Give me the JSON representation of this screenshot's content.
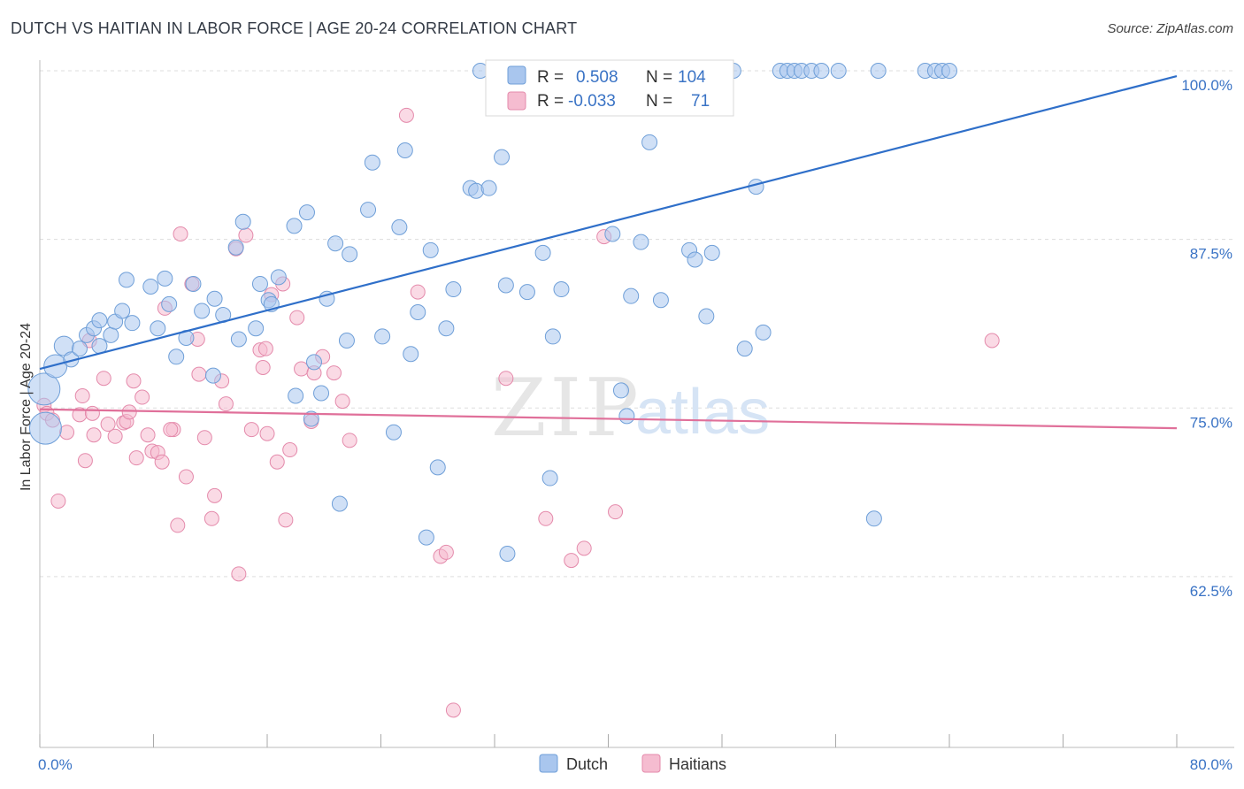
{
  "title": "DUTCH VS HAITIAN IN LABOR FORCE | AGE 20-24 CORRELATION CHART",
  "source": "Source: ZipAtlas.com",
  "watermark": {
    "zip": "ZIP",
    "atlas": "atlas"
  },
  "legend_box": {
    "rows": [
      {
        "r_label": "R =",
        "r_value": "0.508",
        "n_label": "N =",
        "n_value": "104"
      },
      {
        "r_label": "R =",
        "r_value": "-0.033",
        "n_label": "N =",
        "n_value": "71"
      }
    ]
  },
  "bottom_legend": [
    "Dutch",
    "Haitians"
  ],
  "colors": {
    "dutch_fill": "#a9c6ee",
    "dutch_stroke": "#6f9fd8",
    "dutch_line": "#2f6fc9",
    "haitian_fill": "#f5bcd0",
    "haitian_stroke": "#e48aab",
    "haitian_line": "#e0709a",
    "value_text": "#3a73c5",
    "grid": "#dddddd"
  },
  "chart_data": {
    "type": "scatter",
    "xlabel": "",
    "ylabel": "In Labor Force | Age 20-24",
    "xlim": [
      0,
      80
    ],
    "ylim": [
      50,
      100
    ],
    "x_tick_labels": [
      {
        "value": 0,
        "label": "0.0%"
      },
      {
        "value": 80,
        "label": "80.0%"
      }
    ],
    "y_tick_labels": [
      {
        "value": 100,
        "label": "100.0%"
      },
      {
        "value": 87.5,
        "label": "87.5%"
      },
      {
        "value": 75,
        "label": "75.0%"
      },
      {
        "value": 62.5,
        "label": "62.5%"
      }
    ],
    "grid": true,
    "series": [
      {
        "name": "Dutch",
        "r": 0.508,
        "n": 104,
        "trend": {
          "x": [
            0,
            80
          ],
          "y": [
            77.9,
            99.6
          ]
        },
        "points": [
          [
            0.3,
            76.4
          ],
          [
            0.4,
            73.5
          ],
          [
            1.1,
            78.1
          ],
          [
            1.7,
            79.6
          ],
          [
            2.2,
            78.6
          ],
          [
            2.8,
            79.4
          ],
          [
            3.3,
            80.4
          ],
          [
            3.8,
            80.9
          ],
          [
            4.2,
            79.6
          ],
          [
            4.2,
            81.5
          ],
          [
            5.0,
            80.4
          ],
          [
            5.3,
            81.4
          ],
          [
            5.8,
            82.2
          ],
          [
            6.1,
            84.5
          ],
          [
            6.5,
            81.3
          ],
          [
            7.8,
            84.0
          ],
          [
            8.3,
            80.9
          ],
          [
            8.8,
            84.6
          ],
          [
            9.1,
            82.7
          ],
          [
            9.6,
            78.8
          ],
          [
            10.3,
            80.2
          ],
          [
            10.8,
            84.2
          ],
          [
            11.4,
            82.2
          ],
          [
            12.2,
            77.4
          ],
          [
            12.3,
            83.1
          ],
          [
            12.9,
            81.9
          ],
          [
            13.8,
            86.9
          ],
          [
            14.0,
            80.1
          ],
          [
            14.3,
            88.8
          ],
          [
            15.2,
            80.9
          ],
          [
            15.5,
            84.2
          ],
          [
            16.1,
            83.0
          ],
          [
            16.3,
            82.7
          ],
          [
            16.8,
            84.7
          ],
          [
            17.9,
            88.5
          ],
          [
            18.0,
            75.9
          ],
          [
            18.8,
            89.5
          ],
          [
            19.1,
            74.2
          ],
          [
            19.3,
            78.4
          ],
          [
            19.8,
            76.1
          ],
          [
            20.2,
            83.1
          ],
          [
            20.8,
            87.2
          ],
          [
            21.1,
            67.9
          ],
          [
            21.6,
            80.0
          ],
          [
            21.8,
            86.4
          ],
          [
            23.1,
            89.7
          ],
          [
            23.4,
            93.2
          ],
          [
            24.1,
            80.3
          ],
          [
            24.9,
            73.2
          ],
          [
            25.3,
            88.4
          ],
          [
            25.7,
            94.1
          ],
          [
            26.1,
            79.0
          ],
          [
            26.6,
            82.1
          ],
          [
            27.2,
            65.4
          ],
          [
            27.5,
            86.7
          ],
          [
            28.0,
            70.6
          ],
          [
            28.6,
            80.9
          ],
          [
            29.1,
            83.8
          ],
          [
            30.3,
            91.3
          ],
          [
            30.7,
            91.1
          ],
          [
            31.0,
            100.0
          ],
          [
            31.6,
            91.3
          ],
          [
            32.5,
            93.6
          ],
          [
            32.8,
            84.1
          ],
          [
            32.9,
            64.2
          ],
          [
            34.3,
            83.6
          ],
          [
            35.4,
            86.5
          ],
          [
            35.9,
            69.8
          ],
          [
            36.1,
            80.3
          ],
          [
            36.5,
            100.0
          ],
          [
            36.7,
            83.8
          ],
          [
            37.3,
            100.0
          ],
          [
            39.5,
            100.0
          ],
          [
            40.3,
            87.9
          ],
          [
            40.9,
            76.3
          ],
          [
            41.3,
            74.4
          ],
          [
            41.6,
            83.3
          ],
          [
            42.3,
            87.3
          ],
          [
            42.9,
            94.7
          ],
          [
            43.7,
            83.0
          ],
          [
            45.1,
            100.0
          ],
          [
            45.7,
            86.7
          ],
          [
            46.1,
            86.0
          ],
          [
            46.9,
            81.8
          ],
          [
            47.3,
            86.5
          ],
          [
            48.1,
            100.0
          ],
          [
            48.8,
            100.0
          ],
          [
            49.6,
            79.4
          ],
          [
            50.4,
            91.4
          ],
          [
            50.9,
            80.6
          ],
          [
            52.1,
            100.0
          ],
          [
            52.6,
            100.0
          ],
          [
            53.1,
            100.0
          ],
          [
            53.6,
            100.0
          ],
          [
            54.3,
            100.0
          ],
          [
            56.2,
            100.0
          ],
          [
            58.7,
            66.8
          ],
          [
            59.0,
            100.0
          ],
          [
            62.3,
            100.0
          ],
          [
            63.0,
            100.0
          ],
          [
            63.5,
            100.0
          ],
          [
            64.0,
            100.0
          ],
          [
            55.0,
            100.0
          ],
          [
            32.0,
            100.0
          ]
        ],
        "sizes": {
          "0.3,76.4": 18,
          "0.4,73.5": 18,
          "1.1,78.1": 13,
          "1.7,79.6": 11
        }
      },
      {
        "name": "Haitians",
        "r": -0.033,
        "n": 71,
        "trend": {
          "x": [
            0,
            80
          ],
          "y": [
            74.9,
            73.5
          ]
        },
        "points": [
          [
            0.3,
            75.2
          ],
          [
            0.5,
            74.6
          ],
          [
            0.9,
            74.1
          ],
          [
            1.3,
            68.1
          ],
          [
            1.9,
            73.2
          ],
          [
            2.8,
            74.5
          ],
          [
            3.0,
            75.9
          ],
          [
            3.2,
            71.1
          ],
          [
            3.7,
            74.6
          ],
          [
            3.8,
            73.0
          ],
          [
            4.5,
            77.2
          ],
          [
            4.8,
            73.8
          ],
          [
            5.3,
            72.9
          ],
          [
            5.9,
            73.9
          ],
          [
            6.1,
            74.0
          ],
          [
            6.3,
            74.7
          ],
          [
            6.6,
            77.0
          ],
          [
            6.8,
            71.3
          ],
          [
            7.2,
            75.8
          ],
          [
            7.6,
            73.0
          ],
          [
            7.9,
            71.8
          ],
          [
            8.3,
            71.7
          ],
          [
            8.6,
            71.0
          ],
          [
            8.8,
            82.4
          ],
          [
            9.4,
            73.4
          ],
          [
            9.7,
            66.3
          ],
          [
            9.9,
            87.9
          ],
          [
            10.3,
            69.9
          ],
          [
            10.7,
            84.2
          ],
          [
            11.1,
            80.1
          ],
          [
            11.2,
            77.5
          ],
          [
            11.6,
            72.8
          ],
          [
            12.1,
            66.8
          ],
          [
            12.3,
            68.5
          ],
          [
            12.8,
            77.0
          ],
          [
            13.1,
            75.3
          ],
          [
            13.8,
            86.8
          ],
          [
            14.0,
            62.7
          ],
          [
            14.5,
            87.8
          ],
          [
            14.9,
            73.4
          ],
          [
            15.5,
            79.3
          ],
          [
            15.9,
            79.4
          ],
          [
            16.0,
            73.1
          ],
          [
            16.7,
            71.0
          ],
          [
            17.1,
            84.2
          ],
          [
            17.3,
            66.7
          ],
          [
            17.6,
            71.9
          ],
          [
            18.1,
            81.7
          ],
          [
            18.4,
            77.9
          ],
          [
            19.1,
            74.0
          ],
          [
            19.3,
            77.6
          ],
          [
            19.9,
            78.8
          ],
          [
            20.7,
            77.6
          ],
          [
            21.3,
            75.5
          ],
          [
            21.8,
            72.6
          ],
          [
            25.8,
            96.7
          ],
          [
            26.6,
            83.6
          ],
          [
            28.2,
            64.0
          ],
          [
            28.6,
            64.3
          ],
          [
            29.1,
            52.6
          ],
          [
            32.8,
            77.2
          ],
          [
            35.6,
            66.8
          ],
          [
            37.4,
            63.7
          ],
          [
            38.3,
            64.6
          ],
          [
            39.7,
            87.7
          ],
          [
            40.5,
            67.3
          ],
          [
            67.0,
            80.0
          ],
          [
            15.7,
            78.0
          ],
          [
            9.2,
            73.4
          ],
          [
            16.3,
            83.4
          ],
          [
            3.5,
            80.0
          ]
        ]
      }
    ]
  }
}
